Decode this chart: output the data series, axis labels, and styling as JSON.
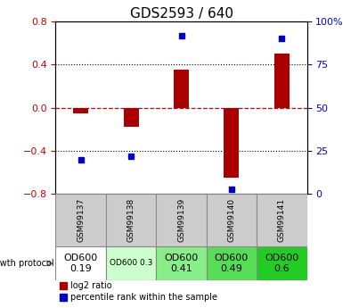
{
  "title": "GDS2593 / 640",
  "samples": [
    "GSM99137",
    "GSM99138",
    "GSM99139",
    "GSM99140",
    "GSM99141"
  ],
  "log2_ratio": [
    -0.05,
    -0.18,
    0.35,
    -0.65,
    0.5
  ],
  "percentile_rank": [
    20,
    22,
    92,
    3,
    90
  ],
  "left_ylim": [
    -0.8,
    0.8
  ],
  "right_ylim": [
    0,
    100
  ],
  "left_yticks": [
    -0.8,
    -0.4,
    0.0,
    0.4,
    0.8
  ],
  "right_yticks": [
    0,
    25,
    50,
    75,
    100
  ],
  "right_yticklabels": [
    "0",
    "25",
    "50",
    "75",
    "100%"
  ],
  "bar_color": "#aa0000",
  "dot_color": "#0000cc",
  "zero_line_color": "#cc0000",
  "dotted_color": "#000000",
  "growth_protocol_labels": [
    "OD600\n0.19",
    "OD600 0.3",
    "OD600\n0.41",
    "OD600\n0.49",
    "OD600\n0.6"
  ],
  "cell_font_sizes": [
    8,
    6.5,
    8,
    8,
    8
  ],
  "proto_colors": [
    "#ffffff",
    "#ccffcc",
    "#88ee88",
    "#55dd55",
    "#22cc22"
  ],
  "header_bg": "#cccccc",
  "background_color": "#ffffff",
  "bar_width": 0.3
}
